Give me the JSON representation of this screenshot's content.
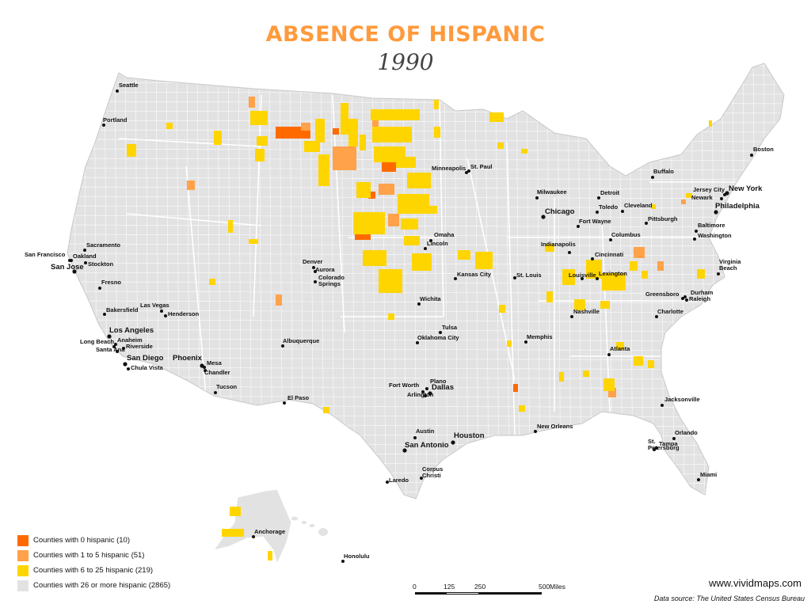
{
  "title": "ABSENCE OF HISPANIC",
  "subtitle": "1990",
  "colors": {
    "zero": "#ff6a00",
    "one_to_five": "#ffa24a",
    "six_to_25": "#ffd500",
    "twentysix_plus": "#e2e2e2",
    "title": "#ff9a3c"
  },
  "legend": [
    {
      "label": "Counties with 0 hispanic (10)",
      "color": "#ff6a00"
    },
    {
      "label": "Counties with 1 to 5 hispanic (51)",
      "color": "#ffa24a"
    },
    {
      "label": "Counties with 6 to 25 hispanic  (219)",
      "color": "#ffd500"
    },
    {
      "label": "Counties with 26 or more hispanic  (2865)",
      "color": "#e2e2e2"
    }
  ],
  "scale": {
    "labels": [
      "0",
      "125",
      "250",
      "500"
    ],
    "unit": "Miles"
  },
  "website": "www.vividmaps.com",
  "source": "Data source: The United States Census Bureau",
  "cities": [
    {
      "name": "Seattle",
      "bold": false
    },
    {
      "name": "Portland",
      "bold": false
    },
    {
      "name": "Sacramento",
      "bold": false
    },
    {
      "name": "San Francisco",
      "bold": false
    },
    {
      "name": "Oakland",
      "bold": false
    },
    {
      "name": "Stockton",
      "bold": false
    },
    {
      "name": "San Jose",
      "bold": true
    },
    {
      "name": "Fresno",
      "bold": false
    },
    {
      "name": "Bakersfield",
      "bold": false
    },
    {
      "name": "Las Vegas",
      "bold": false
    },
    {
      "name": "Henderson",
      "bold": false
    },
    {
      "name": "Los Angeles",
      "bold": true
    },
    {
      "name": "Long Beach",
      "bold": false
    },
    {
      "name": "Anaheim",
      "bold": false
    },
    {
      "name": "Santa Ana",
      "bold": false
    },
    {
      "name": "Riverside",
      "bold": false
    },
    {
      "name": "San Diego",
      "bold": true
    },
    {
      "name": "Chula Vista",
      "bold": false
    },
    {
      "name": "Phoenix",
      "bold": true
    },
    {
      "name": "Mesa",
      "bold": false
    },
    {
      "name": "Chandler",
      "bold": false
    },
    {
      "name": "Tucson",
      "bold": false
    },
    {
      "name": "Denver",
      "bold": false
    },
    {
      "name": "Aurora",
      "bold": false
    },
    {
      "name": "Colorado Springs",
      "bold": false
    },
    {
      "name": "Albuquerque",
      "bold": false
    },
    {
      "name": "El Paso",
      "bold": false
    },
    {
      "name": "Minneapolis",
      "bold": false
    },
    {
      "name": "St. Paul",
      "bold": false
    },
    {
      "name": "Omaha",
      "bold": false
    },
    {
      "name": "Lincoln",
      "bold": false
    },
    {
      "name": "Kansas City",
      "bold": false
    },
    {
      "name": "Wichita",
      "bold": false
    },
    {
      "name": "Tulsa",
      "bold": false
    },
    {
      "name": "Oklahoma City",
      "bold": false
    },
    {
      "name": "Fort Worth",
      "bold": false
    },
    {
      "name": "Plano",
      "bold": false
    },
    {
      "name": "Dallas",
      "bold": true
    },
    {
      "name": "Arlington",
      "bold": false
    },
    {
      "name": "Austin",
      "bold": false
    },
    {
      "name": "San Antonio",
      "bold": true
    },
    {
      "name": "Houston",
      "bold": true
    },
    {
      "name": "Corpus Christi",
      "bold": false
    },
    {
      "name": "Laredo",
      "bold": false
    },
    {
      "name": "Milwaukee",
      "bold": false
    },
    {
      "name": "Chicago",
      "bold": true
    },
    {
      "name": "Detroit",
      "bold": false
    },
    {
      "name": "Toledo",
      "bold": false
    },
    {
      "name": "Cleveland",
      "bold": false
    },
    {
      "name": "Fort Wayne",
      "bold": false
    },
    {
      "name": "Columbus",
      "bold": false
    },
    {
      "name": "Indianapolis",
      "bold": false
    },
    {
      "name": "Cincinnati",
      "bold": false
    },
    {
      "name": "Louisville",
      "bold": false
    },
    {
      "name": "Lexington",
      "bold": false
    },
    {
      "name": "St. Louis",
      "bold": false
    },
    {
      "name": "Nashville",
      "bold": false
    },
    {
      "name": "Memphis",
      "bold": false
    },
    {
      "name": "Atlanta",
      "bold": false
    },
    {
      "name": "New Orleans",
      "bold": false
    },
    {
      "name": "Jacksonville",
      "bold": false
    },
    {
      "name": "Orlando",
      "bold": false
    },
    {
      "name": "St. Petersburg",
      "bold": false
    },
    {
      "name": "Tampa",
      "bold": false
    },
    {
      "name": "Miami",
      "bold": false
    },
    {
      "name": "Charlotte",
      "bold": false
    },
    {
      "name": "Greensboro",
      "bold": false
    },
    {
      "name": "Durham",
      "bold": false
    },
    {
      "name": "Raleigh",
      "bold": false
    },
    {
      "name": "Virginia Beach",
      "bold": false
    },
    {
      "name": "Washington",
      "bold": false
    },
    {
      "name": "Baltimore",
      "bold": false
    },
    {
      "name": "Philadelphia",
      "bold": true
    },
    {
      "name": "Newark",
      "bold": false
    },
    {
      "name": "Jersey City",
      "bold": false
    },
    {
      "name": "New York",
      "bold": true
    },
    {
      "name": "Pittsburgh",
      "bold": false
    },
    {
      "name": "Buffalo",
      "bold": false
    },
    {
      "name": "Boston",
      "bold": false
    },
    {
      "name": "Anchorage",
      "bold": false
    },
    {
      "name": "Honolulu",
      "bold": false
    }
  ]
}
